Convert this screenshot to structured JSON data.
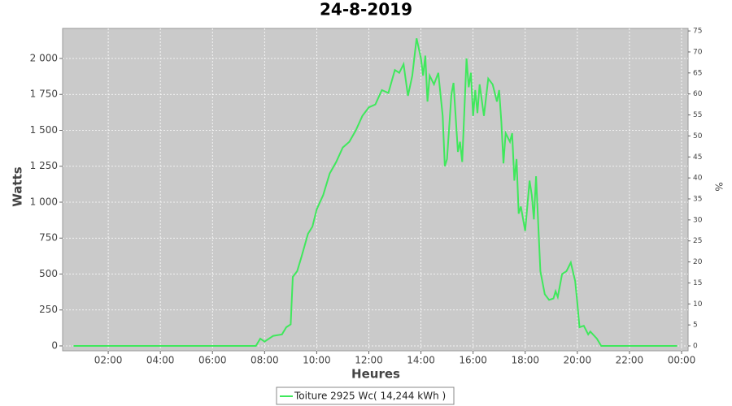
{
  "chart_data": {
    "type": "line",
    "title": "24-8-2019",
    "x_label": "Heures",
    "y_label": "Watts",
    "y2_label": "%",
    "x": [
      40,
      460,
      470,
      480,
      490,
      500,
      520,
      530,
      540,
      545,
      555,
      565,
      580,
      590,
      600,
      615,
      630,
      645,
      660,
      675,
      690,
      705,
      720,
      735,
      750,
      765,
      780,
      790,
      800,
      810,
      820,
      830,
      840,
      845,
      850,
      855,
      860,
      870,
      880,
      890,
      895,
      900,
      910,
      915,
      925,
      930,
      935,
      945,
      950,
      955,
      960,
      965,
      970,
      975,
      985,
      995,
      1005,
      1015,
      1020,
      1025,
      1030,
      1035,
      1045,
      1050,
      1055,
      1060,
      1065,
      1070,
      1080,
      1090,
      1095,
      1100,
      1105,
      1115,
      1125,
      1135,
      1145,
      1150,
      1155,
      1165,
      1175,
      1185,
      1195,
      1200,
      1205,
      1215,
      1225,
      1230,
      1245,
      1255,
      1430
    ],
    "series": [
      {
        "name": "Toiture 2925 Wc( 14,244 kWh )",
        "color": "#3fe85c",
        "values": [
          0,
          0,
          50,
          30,
          50,
          70,
          80,
          130,
          150,
          480,
          520,
          620,
          780,
          830,
          950,
          1050,
          1200,
          1280,
          1380,
          1420,
          1500,
          1600,
          1660,
          1680,
          1780,
          1760,
          1920,
          1900,
          1960,
          1740,
          1880,
          2140,
          2000,
          1880,
          2020,
          1700,
          1880,
          1820,
          1900,
          1600,
          1250,
          1300,
          1750,
          1830,
          1350,
          1420,
          1280,
          2000,
          1800,
          1900,
          1600,
          1780,
          1620,
          1820,
          1600,
          1860,
          1820,
          1700,
          1780,
          1560,
          1270,
          1480,
          1420,
          1480,
          1150,
          1300,
          920,
          970,
          800,
          1150,
          1050,
          880,
          1180,
          520,
          360,
          320,
          330,
          380,
          340,
          500,
          520,
          580,
          450,
          300,
          130,
          140,
          80,
          100,
          50,
          0,
          0
        ]
      }
    ],
    "xlim": [
      15,
      1455
    ],
    "xticks": [
      {
        "value": 120,
        "label": "02:00"
      },
      {
        "value": 240,
        "label": "04:00"
      },
      {
        "value": 360,
        "label": "06:00"
      },
      {
        "value": 480,
        "label": "08:00"
      },
      {
        "value": 600,
        "label": "10:00"
      },
      {
        "value": 720,
        "label": "12:00"
      },
      {
        "value": 840,
        "label": "14:00"
      },
      {
        "value": 960,
        "label": "16:00"
      },
      {
        "value": 1080,
        "label": "18:00"
      },
      {
        "value": 1200,
        "label": "20:00"
      },
      {
        "value": 1320,
        "label": "22:00"
      },
      {
        "value": 1440,
        "label": "00:00"
      }
    ],
    "ylim": [
      -34,
      2209
    ],
    "yticks": [
      0,
      250,
      500,
      750,
      {
        "value": 1000,
        "label": "1 000"
      },
      {
        "value": 1250,
        "label": "1 250"
      },
      {
        "value": 1500,
        "label": "1 500"
      },
      {
        "value": 1750,
        "label": "1 750"
      },
      {
        "value": 2000,
        "label": "2 000"
      }
    ],
    "y2lim": [
      -1.16,
      75.6
    ],
    "y2ticks": [
      0,
      5,
      10,
      15,
      20,
      25,
      30,
      35,
      40,
      45,
      50,
      55,
      60,
      65,
      70,
      75
    ],
    "grid": true,
    "background": "#cacaca",
    "legend": "bottom"
  }
}
